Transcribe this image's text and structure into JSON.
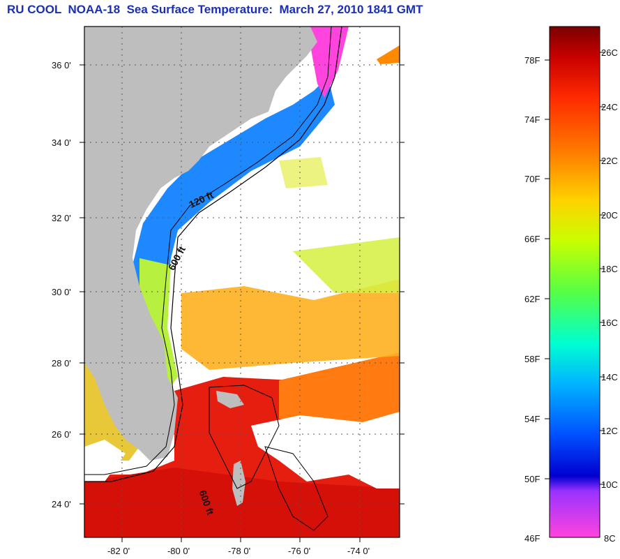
{
  "title": "RU COOL  NOAA-18  Sea Surface Temperature:  March 27, 2010 1841 GMT",
  "latitude_labels": [
    "36 0'",
    "34 0'",
    "32 0'",
    "30 0'",
    "28 0'",
    "26 0'",
    "24 0'"
  ],
  "longitude_labels": [
    "-82 0'",
    "-80 0'",
    "-78 0'",
    "-76 0'",
    "-74 0'"
  ],
  "depth_labels": {
    "shelf_120": "120 ft",
    "shelf_600": "600 ft",
    "bahamas_600": "600 ft"
  },
  "colorbar": {
    "fahrenheit_labels": [
      "78F",
      "74F",
      "70F",
      "66F",
      "62F",
      "58F",
      "54F",
      "50F",
      "46F"
    ],
    "celsius_labels": [
      "26C",
      "24C",
      "22C",
      "20C",
      "18C",
      "16C",
      "14C",
      "12C",
      "10C",
      "8C"
    ],
    "colors": [
      "#7a0000",
      "#c80000",
      "#ff2a00",
      "#ff7f00",
      "#ffd200",
      "#c8ff00",
      "#55ff44",
      "#00ffd0",
      "#00b4ff",
      "#0050ff",
      "#0000d0",
      "#9933ff",
      "#ff44dd"
    ]
  },
  "colors": {
    "land": "#bebebe",
    "ocean_no_data": "#ffffff",
    "contour": "#000000",
    "title": "#1a2fb5"
  }
}
